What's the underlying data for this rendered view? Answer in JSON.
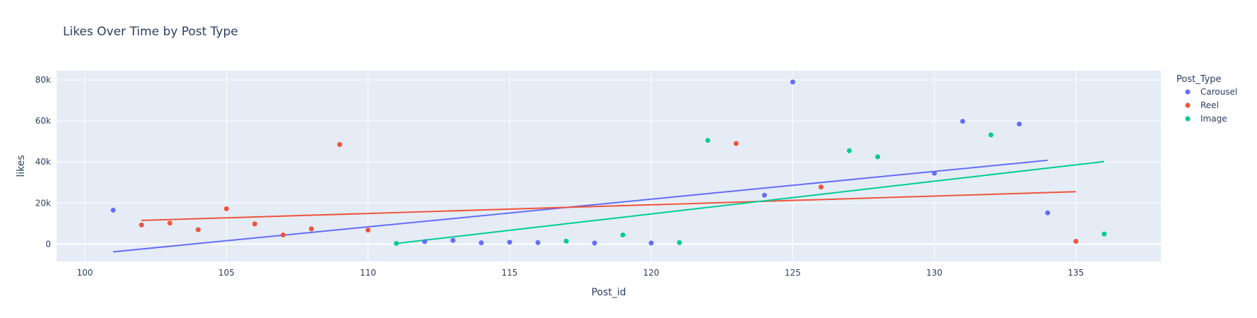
{
  "chart_data": {
    "type": "scatter",
    "title": "Likes Over Time by Post Type",
    "xlabel": "Post_id",
    "ylabel": "likes",
    "xlim": [
      99,
      138
    ],
    "ylim": [
      -8500,
      84500
    ],
    "x_ticks": [
      100,
      105,
      110,
      115,
      120,
      125,
      130,
      135
    ],
    "y_ticks": [
      0,
      20000,
      40000,
      60000,
      80000
    ],
    "y_tick_labels": [
      "0",
      "20k",
      "40k",
      "60k",
      "80k"
    ],
    "grid": true,
    "legend": {
      "title": "Post_Type",
      "placement": "right"
    },
    "series": [
      {
        "name": "Carousel",
        "color": "#636efa",
        "points": [
          [
            101,
            16500
          ],
          [
            112,
            1200
          ],
          [
            113,
            1800
          ],
          [
            114,
            600
          ],
          [
            115,
            900
          ],
          [
            116,
            700
          ],
          [
            118,
            500
          ],
          [
            120,
            500
          ],
          [
            124,
            23800
          ],
          [
            125,
            79000
          ],
          [
            130,
            34500
          ],
          [
            131,
            59800
          ],
          [
            133,
            58500
          ],
          [
            134,
            15200
          ]
        ],
        "trendline": [
          [
            101,
            -3800
          ],
          [
            134,
            40800
          ]
        ]
      },
      {
        "name": "Reel",
        "color": "#ef553b",
        "points": [
          [
            102,
            9300
          ],
          [
            103,
            10200
          ],
          [
            104,
            7000
          ],
          [
            105,
            17200
          ],
          [
            106,
            9800
          ],
          [
            107,
            4400
          ],
          [
            108,
            7400
          ],
          [
            109,
            48500
          ],
          [
            110,
            6800
          ],
          [
            123,
            49000
          ],
          [
            126,
            27800
          ],
          [
            135,
            1300
          ]
        ],
        "trendline": [
          [
            102,
            11500
          ],
          [
            135,
            25500
          ]
        ]
      },
      {
        "name": "Image",
        "color": "#00cc96",
        "points": [
          [
            111,
            300
          ],
          [
            117,
            1400
          ],
          [
            119,
            4400
          ],
          [
            121,
            700
          ],
          [
            122,
            50500
          ],
          [
            127,
            45500
          ],
          [
            128,
            42500
          ],
          [
            132,
            53200
          ],
          [
            136,
            4900
          ]
        ],
        "trendline": [
          [
            111,
            300
          ],
          [
            136,
            40200
          ]
        ]
      }
    ]
  }
}
